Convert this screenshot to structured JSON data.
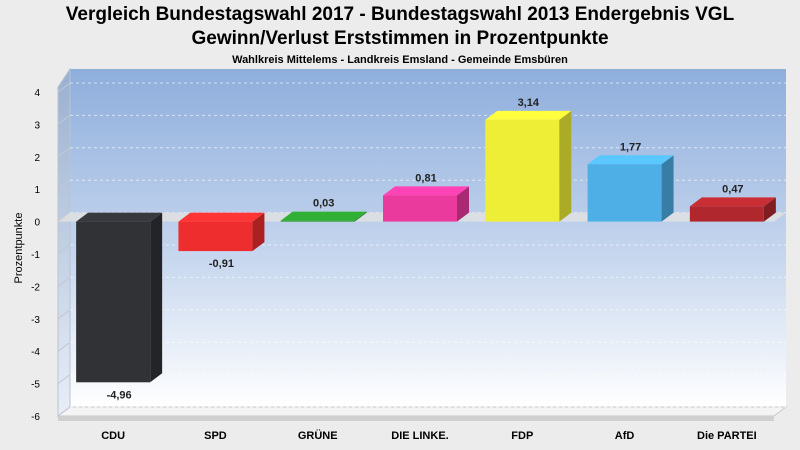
{
  "chart_data": {
    "type": "bar",
    "title": "Vergleich Bundestagswahl 2017 - Bundestagswahl 2013 Endergebnis VGL",
    "title2": "Gewinn/Verlust Erststimmen in Prozentpunkte",
    "subtitle": "Wahlkreis Mittelems - Landkreis Emsland - Gemeinde Emsbüren",
    "ylabel": "Prozentpunkte",
    "xlabel": "",
    "ylim": [
      -6,
      4
    ],
    "yticks": [
      4,
      3,
      2,
      1,
      0,
      -1,
      -2,
      -3,
      -4,
      -5,
      -6
    ],
    "grid": true,
    "categories": [
      "CDU",
      "SPD",
      "GRÜNE",
      "DIE LINKE.",
      "FDP",
      "AfD",
      "Die PARTEI"
    ],
    "values": [
      -4.96,
      -0.91,
      0.03,
      0.81,
      3.14,
      1.77,
      0.47
    ],
    "value_labels": [
      "-4,96",
      "-0,91",
      "0,03",
      "0,81",
      "3,14",
      "1,77",
      "0,47"
    ],
    "colors": [
      "#303236",
      "#ee2e2e",
      "#2a9a2e",
      "#ea3a9e",
      "#eeee36",
      "#4eaee6",
      "#b0282e"
    ]
  }
}
